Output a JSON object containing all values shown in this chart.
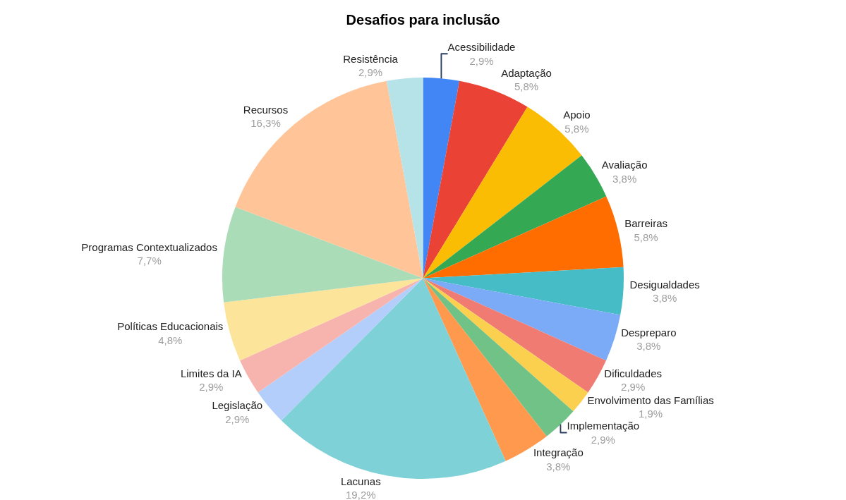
{
  "chart_data": {
    "type": "pie",
    "title": "Desafios para inclusão",
    "categories": [
      "Acessibilidade",
      "Adaptação",
      "Apoio",
      "Avaliação",
      "Barreiras",
      "Desigualdades",
      "Despreparo",
      "Dificuldades",
      "Envolvimento das Famílias",
      "Implementação",
      "Integração",
      "Lacunas",
      "Legislação",
      "Limites da IA",
      "Políticas Educacionais",
      "Programas Contextualizados",
      "Recursos",
      "Resistência"
    ],
    "values": [
      2.9,
      5.8,
      5.8,
      3.8,
      5.8,
      3.8,
      3.8,
      2.9,
      1.9,
      2.9,
      3.8,
      19.2,
      2.9,
      2.9,
      4.8,
      7.7,
      16.3,
      2.9
    ],
    "value_labels": [
      "2,9%",
      "5,8%",
      "5,8%",
      "3,8%",
      "5,8%",
      "3,8%",
      "3,8%",
      "2,9%",
      "1,9%",
      "2,9%",
      "3,8%",
      "19,2%",
      "2,9%",
      "2,9%",
      "4,8%",
      "7,7%",
      "16,3%",
      "2,9%"
    ],
    "colors": [
      "#4285f4",
      "#ea4335",
      "#fbbc04",
      "#34a853",
      "#ff6d01",
      "#46bdc6",
      "#7baaf7",
      "#f07b72",
      "#fcd04f",
      "#71c287",
      "#ff994d",
      "#7ed1d7",
      "#b3cefb",
      "#f7b4ae",
      "#fde49b",
      "#aadcb8",
      "#ffc599",
      "#b5e3e8"
    ],
    "legend": false
  }
}
